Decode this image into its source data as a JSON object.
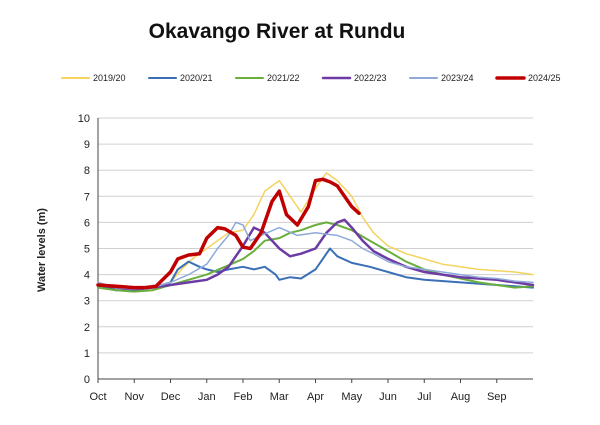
{
  "chart_data": {
    "type": "line",
    "title": "Okavango River at Rundu",
    "ylabel": "Water levels (m)",
    "xlabel": "",
    "ylim": [
      0,
      10
    ],
    "yticks": [
      0,
      1,
      2,
      3,
      4,
      5,
      6,
      7,
      8,
      9,
      10
    ],
    "months": [
      "Oct",
      "Nov",
      "Dec",
      "Jan",
      "Feb",
      "Mar",
      "Apr",
      "May",
      "Jun",
      "Jul",
      "Aug",
      "Sep"
    ],
    "x_unit": "months since start of hydrological year (0 = 1 Oct)",
    "grid": true,
    "legend_position": "top",
    "series": [
      {
        "name": "2019/20",
        "color": "#F4D35E",
        "width": 1.5,
        "x": [
          0,
          0.5,
          1,
          1.5,
          2,
          2.3,
          2.6,
          3,
          3.3,
          3.6,
          4,
          4.3,
          4.6,
          5,
          5.3,
          5.6,
          6,
          6.3,
          6.6,
          7,
          7.3,
          7.6,
          8,
          8.5,
          9,
          9.5,
          10,
          10.5,
          11,
          11.5,
          12
        ],
        "values": [
          3.7,
          3.5,
          3.45,
          3.5,
          3.7,
          4.2,
          4.6,
          5.0,
          5.3,
          5.6,
          5.7,
          6.3,
          7.2,
          7.6,
          7.0,
          6.4,
          7.3,
          7.9,
          7.6,
          7.0,
          6.2,
          5.6,
          5.1,
          4.8,
          4.6,
          4.4,
          4.3,
          4.2,
          4.15,
          4.1,
          4.0
        ]
      },
      {
        "name": "2020/21",
        "color": "#3A6FB7",
        "width": 2,
        "x": [
          0,
          0.5,
          1,
          1.5,
          2,
          2.2,
          2.5,
          2.8,
          3,
          3.3,
          3.6,
          4,
          4.3,
          4.6,
          4.9,
          5,
          5.3,
          5.6,
          6,
          6.2,
          6.4,
          6.6,
          7,
          7.5,
          8,
          8.5,
          9,
          10,
          11,
          12
        ],
        "values": [
          3.6,
          3.4,
          3.4,
          3.5,
          3.7,
          4.2,
          4.5,
          4.3,
          4.2,
          4.1,
          4.2,
          4.3,
          4.2,
          4.3,
          4.0,
          3.8,
          3.9,
          3.85,
          4.2,
          4.6,
          5.0,
          4.7,
          4.45,
          4.3,
          4.1,
          3.9,
          3.8,
          3.7,
          3.6,
          3.5
        ]
      },
      {
        "name": "2021/22",
        "color": "#6AAE3C",
        "width": 2,
        "x": [
          0,
          0.5,
          1,
          1.5,
          2,
          2.5,
          3,
          3.5,
          4,
          4.3,
          4.6,
          5,
          5.3,
          5.6,
          6,
          6.3,
          6.6,
          7,
          7.5,
          8,
          8.5,
          9,
          9.5,
          10,
          10.5,
          11,
          11.5,
          12
        ],
        "values": [
          3.5,
          3.4,
          3.35,
          3.4,
          3.6,
          3.8,
          4.0,
          4.3,
          4.6,
          4.9,
          5.3,
          5.4,
          5.6,
          5.7,
          5.9,
          6.0,
          5.9,
          5.7,
          5.3,
          4.9,
          4.5,
          4.2,
          4.0,
          3.85,
          3.7,
          3.6,
          3.5,
          3.55
        ]
      },
      {
        "name": "2022/23",
        "color": "#6E3BA5",
        "width": 2.5,
        "x": [
          0,
          0.5,
          1,
          1.5,
          2,
          2.5,
          3,
          3.3,
          3.6,
          4,
          4.3,
          4.6,
          5,
          5.3,
          5.6,
          6,
          6.3,
          6.6,
          6.8,
          7,
          7.3,
          7.6,
          8,
          8.5,
          9,
          9.5,
          10,
          10.5,
          11,
          11.5,
          12
        ],
        "values": [
          3.6,
          3.5,
          3.45,
          3.5,
          3.6,
          3.7,
          3.8,
          4.0,
          4.3,
          5.1,
          5.8,
          5.6,
          5.0,
          4.7,
          4.8,
          5.0,
          5.6,
          6.0,
          6.1,
          5.8,
          5.3,
          4.9,
          4.6,
          4.3,
          4.1,
          4.0,
          3.9,
          3.85,
          3.8,
          3.7,
          3.6
        ]
      },
      {
        "name": "2023/24",
        "color": "#8FAAD9",
        "width": 1.5,
        "x": [
          0,
          0.5,
          1,
          1.5,
          2,
          2.5,
          3,
          3.3,
          3.6,
          3.8,
          4,
          4.2,
          4.5,
          5,
          5.5,
          6,
          6.3,
          6.6,
          7,
          7.3,
          7.6,
          8,
          8.5,
          9,
          9.5,
          10,
          10.5,
          11,
          11.5,
          12
        ],
        "values": [
          3.7,
          3.5,
          3.45,
          3.5,
          3.7,
          4.0,
          4.4,
          5.0,
          5.5,
          6.0,
          5.9,
          5.3,
          5.5,
          5.8,
          5.5,
          5.6,
          5.55,
          5.5,
          5.3,
          5.0,
          4.8,
          4.5,
          4.3,
          4.2,
          4.1,
          4.0,
          3.9,
          3.85,
          3.75,
          3.7
        ]
      },
      {
        "name": "2024/25",
        "color": "#C00000",
        "width": 3.5,
        "x": [
          0,
          0.5,
          1,
          1.3,
          1.6,
          2,
          2.2,
          2.5,
          2.8,
          3,
          3.3,
          3.5,
          3.8,
          4,
          4.2,
          4.5,
          4.8,
          5,
          5.2,
          5.5,
          5.8,
          6,
          6.2,
          6.4,
          6.6,
          6.8,
          7,
          7.2
        ],
        "values": [
          3.6,
          3.55,
          3.5,
          3.5,
          3.55,
          4.1,
          4.6,
          4.75,
          4.8,
          5.4,
          5.8,
          5.75,
          5.5,
          5.05,
          5.0,
          5.6,
          6.8,
          7.2,
          6.3,
          5.9,
          6.6,
          7.6,
          7.65,
          7.55,
          7.4,
          7.0,
          6.6,
          6.35
        ]
      }
    ]
  }
}
